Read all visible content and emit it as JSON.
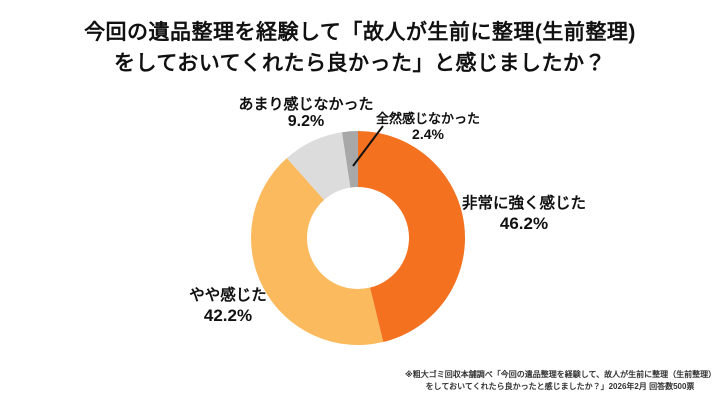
{
  "title": {
    "line1": "今回の遺品整理を経験して「故人が生前に整理(生前整理)",
    "line2": "をしておいてくれたら良かった」と感じましたか？"
  },
  "chart_data": {
    "type": "pie",
    "subtype": "donut",
    "title": "今回の遺品整理を経験して「故人が生前に整理(生前整理)をしておいてくれたら良かった」と感じましたか？",
    "start_angle_deg": -90,
    "direction": "clockwise",
    "legend_position": "none",
    "labels_outside": true,
    "background_color": "#ffffff",
    "segments": [
      {
        "label": "非常に強く感じた",
        "value": 46.2,
        "pct_label": "46.2%",
        "color": "#F4711F"
      },
      {
        "label": "やや感じた",
        "value": 42.2,
        "pct_label": "42.2%",
        "color": "#FBBA5E"
      },
      {
        "label": "あまり感じなかった",
        "value": 9.2,
        "pct_label": "9.2%",
        "color": "#DCDCDC"
      },
      {
        "label": "全然感じなかった",
        "value": 2.4,
        "pct_label": "2.4%",
        "color": "#A8A8A8"
      }
    ]
  },
  "footnote": {
    "line1": "※粗大ゴミ回収本舗調べ「今回の遺品整理を経験して、故人が生前に整理（生前整理）",
    "line2": "をしておいてくれたら良かったと感じましたか？」2026年2月 回答数500票"
  }
}
